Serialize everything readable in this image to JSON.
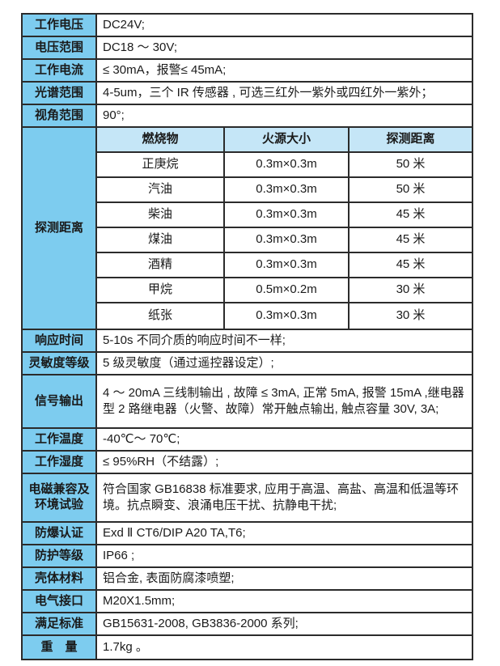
{
  "table": {
    "colors": {
      "label_bg": "#7dccef",
      "nested_header_bg": "#c5e6f7",
      "border": "#2b2b2b",
      "text": "#1a1a1a"
    },
    "rows": [
      {
        "label": "工作电压",
        "value": "DC24V;"
      },
      {
        "label": "电压范围",
        "value": "DC18 ～ 30V;"
      },
      {
        "label": "工作电流",
        "value": "≤ 30mA，报警≤ 45mA;"
      },
      {
        "label": "光谱范围",
        "value": "4-5um，三个 IR 传感器 , 可选三红外一紫外或四红外一紫外；"
      },
      {
        "label": "视角范围",
        "value": "90°;"
      },
      {
        "label": "探测距离",
        "value": ""
      },
      {
        "label": "响应时间",
        "value": "5-10s 不同介质的响应时间不一样;"
      },
      {
        "label": "灵敏度等级",
        "value": "5 级灵敏度（通过遥控器设定）;"
      },
      {
        "label": "信号输出",
        "value": "4 ～ 20mA 三线制输出 , 故障 ≤ 3mA, 正常 5mA, 报警 15mA ,继电器型 2 路继电器（火警、故障）常开触点输出, 触点容量 30V, 3A;"
      },
      {
        "label": "工作温度",
        "value": "-40℃～ 70℃;"
      },
      {
        "label": "工作湿度",
        "value": "≤ 95%RH（不结露）;"
      },
      {
        "label": "电磁兼容及环境试验",
        "value": "符合国家 GB16838 标准要求, 应用于高温、高盐、高温和低温等环境。抗点瞬变、浪涌电压干扰、抗静电干扰;"
      },
      {
        "label": "防爆认证",
        "value": "Exd Ⅱ CT6/DIP A20 TA,T6;"
      },
      {
        "label": "防护等级",
        "value": "IP66 ;"
      },
      {
        "label": "壳体材料",
        "value": "铝合金, 表面防腐漆喷塑;"
      },
      {
        "label": "电气接口",
        "value": "M20X1.5mm;"
      },
      {
        "label": "满足标准",
        "value": "GB15631-2008, GB3836-2000 系列;"
      },
      {
        "label": "重　量",
        "value": "1.7kg 。"
      }
    ],
    "detection": {
      "headers": [
        "燃烧物",
        "火源大小",
        "探测距离"
      ],
      "rows": [
        [
          "正庚烷",
          "0.3m×0.3m",
          "50 米"
        ],
        [
          "汽油",
          "0.3m×0.3m",
          "50 米"
        ],
        [
          "柴油",
          "0.3m×0.3m",
          "45 米"
        ],
        [
          "煤油",
          "0.3m×0.3m",
          "45 米"
        ],
        [
          "酒精",
          "0.3m×0.3m",
          "45 米"
        ],
        [
          "甲烷",
          "0.5m×0.2m",
          "30 米"
        ],
        [
          "纸张",
          "0.3m×0.3m",
          "30 米"
        ]
      ]
    }
  }
}
